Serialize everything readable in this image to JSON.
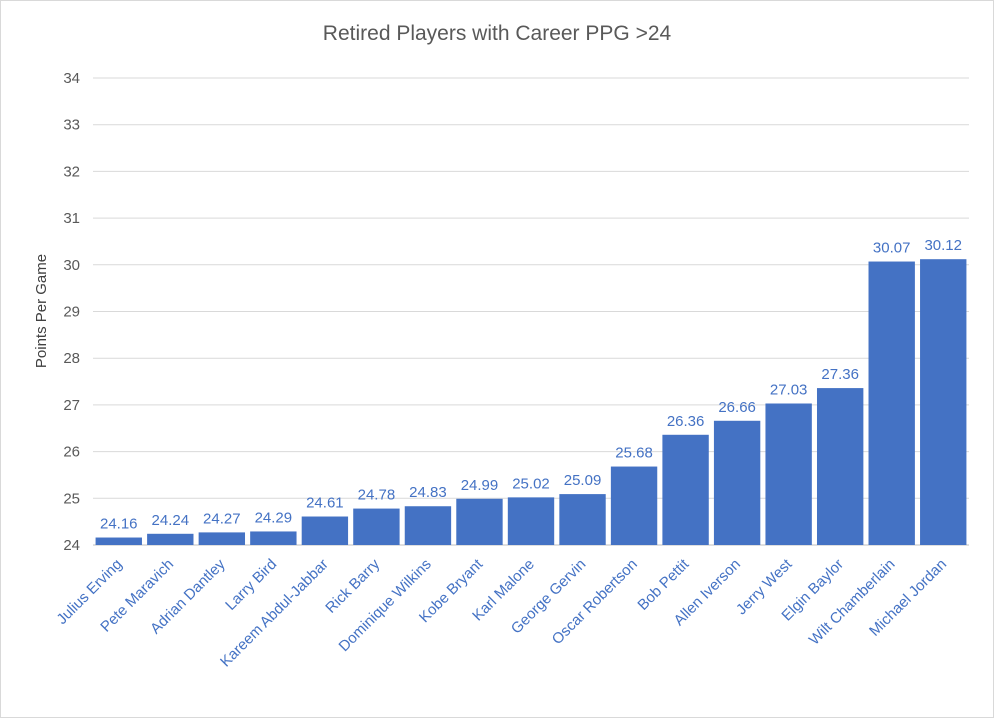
{
  "chart_data": {
    "type": "bar",
    "title": "Retired Players with Career PPG >24",
    "ylabel": "Points Per Game",
    "xlabel": "",
    "ylim": [
      24,
      34
    ],
    "yticks": [
      24,
      25,
      26,
      27,
      28,
      29,
      30,
      31,
      32,
      33,
      34
    ],
    "grid": true,
    "categories": [
      "Julius Erving",
      "Pete Maravich",
      "Adrian Dantley",
      "Larry Bird",
      "Kareem Abdul-Jabbar",
      "Rick Barry",
      "Dominique Wilkins",
      "Kobe Bryant",
      "Karl Malone",
      "George Gervin",
      "Oscar Robertson",
      "Bob Pettit",
      "Allen Iverson",
      "Jerry West",
      "Elgin Baylor",
      "Wilt Chamberlain",
      "Michael Jordan"
    ],
    "values": [
      24.16,
      24.24,
      24.27,
      24.29,
      24.61,
      24.78,
      24.83,
      24.99,
      25.02,
      25.09,
      25.68,
      26.36,
      26.66,
      27.03,
      27.36,
      30.07,
      30.12
    ],
    "data_labels": [
      "24.16",
      "24.24",
      "24.27",
      "24.29",
      "24.61",
      "24.78",
      "24.83",
      "24.99",
      "25.02",
      "25.09",
      "25.68",
      "26.36",
      "26.66",
      "27.03",
      "27.36",
      "30.07",
      "30.12"
    ],
    "colors": {
      "bar": "#4472C4",
      "data_label": "#4472C4",
      "category_label": "#4472C4",
      "gridline": "#d9d9d9"
    }
  }
}
